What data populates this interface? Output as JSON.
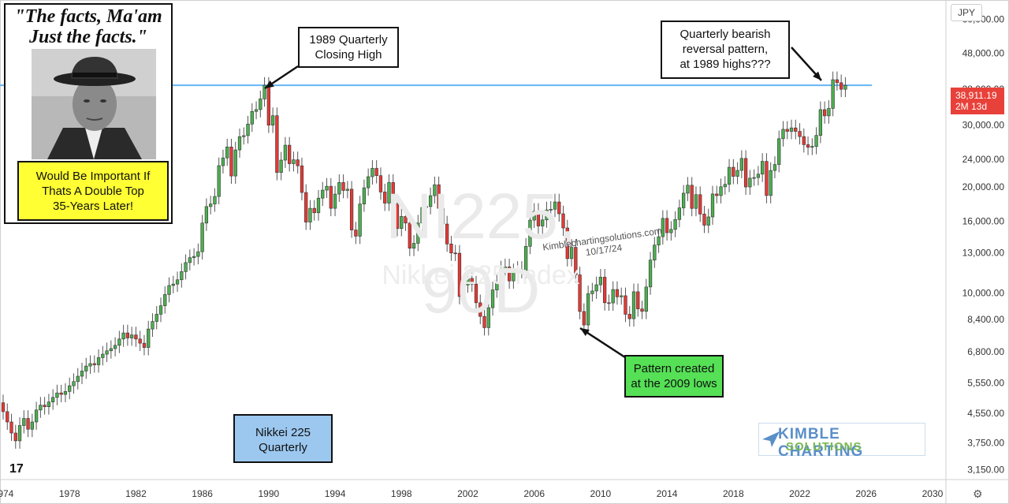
{
  "chart_data": {
    "type": "candlestick",
    "title": "Nikkei 225 Quarterly",
    "currency": "JPY",
    "y_scale": "log",
    "ylim": [
      2950,
      68000
    ],
    "xlim": [
      1974.0,
      2031.0
    ],
    "x_ticks": [
      "1974",
      "1978",
      "1982",
      "1986",
      "1990",
      "1994",
      "1998",
      "2002",
      "2006",
      "2010",
      "2014",
      "2018",
      "2022",
      "2026",
      "2030"
    ],
    "y_ticks": [
      "60,000.00",
      "48,000.00",
      "38,000.00",
      "30,000.00",
      "24,000.00",
      "20,000.00",
      "16,000.00",
      "13,000.00",
      "10,000.00",
      "8,400.00",
      "6,800.00",
      "5,550.00",
      "4,550.00",
      "3,750.00",
      "3,150.00"
    ],
    "resistance_line": 38915,
    "last_price": "38,911.19",
    "countdown": "2M 13d",
    "colors": {
      "up": "#4caf50",
      "down": "#e53935",
      "line": "#64b5f6",
      "tag": "#e8413a"
    },
    "quarterly_close": [
      [
        1974.0,
        4600
      ],
      [
        1974.25,
        4300
      ],
      [
        1974.5,
        4000
      ],
      [
        1974.75,
        3800
      ],
      [
        1975.0,
        4200
      ],
      [
        1975.25,
        4400
      ],
      [
        1975.5,
        4100
      ],
      [
        1975.75,
        4300
      ],
      [
        1976.0,
        4650
      ],
      [
        1976.25,
        4800
      ],
      [
        1976.5,
        4750
      ],
      [
        1976.75,
        4900
      ],
      [
        1977.0,
        5050
      ],
      [
        1977.25,
        5200
      ],
      [
        1977.5,
        5150
      ],
      [
        1977.75,
        5250
      ],
      [
        1978.0,
        5450
      ],
      [
        1978.25,
        5600
      ],
      [
        1978.5,
        5800
      ],
      [
        1978.75,
        6000
      ],
      [
        1979.0,
        6200
      ],
      [
        1979.25,
        6300
      ],
      [
        1979.5,
        6250
      ],
      [
        1979.75,
        6550
      ],
      [
        1980.0,
        6700
      ],
      [
        1980.25,
        6850
      ],
      [
        1980.5,
        6950
      ],
      [
        1980.75,
        7100
      ],
      [
        1981.0,
        7400
      ],
      [
        1981.25,
        7700
      ],
      [
        1981.5,
        7450
      ],
      [
        1981.75,
        7600
      ],
      [
        1982.0,
        7400
      ],
      [
        1982.25,
        7200
      ],
      [
        1982.5,
        7000
      ],
      [
        1982.75,
        7900
      ],
      [
        1983.0,
        8300
      ],
      [
        1983.25,
        8700
      ],
      [
        1983.5,
        9200
      ],
      [
        1983.75,
        9900
      ],
      [
        1984.0,
        10500
      ],
      [
        1984.25,
        10600
      ],
      [
        1984.5,
        10900
      ],
      [
        1984.75,
        11500
      ],
      [
        1985.0,
        12200
      ],
      [
        1985.25,
        12600
      ],
      [
        1985.5,
        12700
      ],
      [
        1985.75,
        13100
      ],
      [
        1986.0,
        15800
      ],
      [
        1986.25,
        17600
      ],
      [
        1986.5,
        17900
      ],
      [
        1986.75,
        18800
      ],
      [
        1987.0,
        23000
      ],
      [
        1987.25,
        24200
      ],
      [
        1987.5,
        26000
      ],
      [
        1987.75,
        21500
      ],
      [
        1988.0,
        25500
      ],
      [
        1988.25,
        27800
      ],
      [
        1988.5,
        28000
      ],
      [
        1988.75,
        30200
      ],
      [
        1989.0,
        32800
      ],
      [
        1989.25,
        33200
      ],
      [
        1989.5,
        35600
      ],
      [
        1989.75,
        38915
      ],
      [
        1990.0,
        29980
      ],
      [
        1990.25,
        31900
      ],
      [
        1990.5,
        22000
      ],
      [
        1990.75,
        23850
      ],
      [
        1991.0,
        26300
      ],
      [
        1991.25,
        23300
      ],
      [
        1991.5,
        23900
      ],
      [
        1991.75,
        22980
      ],
      [
        1992.0,
        19300
      ],
      [
        1992.25,
        15900
      ],
      [
        1992.5,
        17400
      ],
      [
        1992.75,
        16900
      ],
      [
        1993.0,
        18600
      ],
      [
        1993.25,
        19600
      ],
      [
        1993.5,
        20100
      ],
      [
        1993.75,
        17400
      ],
      [
        1994.0,
        19100
      ],
      [
        1994.25,
        20600
      ],
      [
        1994.5,
        19560
      ],
      [
        1994.75,
        19720
      ],
      [
        1995.0,
        15100
      ],
      [
        1995.25,
        14500
      ],
      [
        1995.5,
        17900
      ],
      [
        1995.75,
        19900
      ],
      [
        1996.0,
        21400
      ],
      [
        1996.25,
        22600
      ],
      [
        1996.5,
        21550
      ],
      [
        1996.75,
        19360
      ],
      [
        1997.0,
        18000
      ],
      [
        1997.25,
        20600
      ],
      [
        1997.5,
        17900
      ],
      [
        1997.75,
        15250
      ],
      [
        1998.0,
        16500
      ],
      [
        1998.25,
        15800
      ],
      [
        1998.5,
        13400
      ],
      [
        1998.75,
        13840
      ],
      [
        1999.0,
        15800
      ],
      [
        1999.25,
        17500
      ],
      [
        1999.5,
        17600
      ],
      [
        1999.75,
        18900
      ],
      [
        2000.0,
        20300
      ],
      [
        2000.25,
        17400
      ],
      [
        2000.5,
        15700
      ],
      [
        2000.75,
        13780
      ],
      [
        2001.0,
        12990
      ],
      [
        2001.25,
        12970
      ],
      [
        2001.5,
        9770
      ],
      [
        2001.75,
        10540
      ],
      [
        2002.0,
        11000
      ],
      [
        2002.25,
        10600
      ],
      [
        2002.5,
        9380
      ],
      [
        2002.75,
        8580
      ],
      [
        2003.0,
        7970
      ],
      [
        2003.25,
        9080
      ],
      [
        2003.5,
        10200
      ],
      [
        2003.75,
        10670
      ],
      [
        2004.0,
        11700
      ],
      [
        2004.25,
        11860
      ],
      [
        2004.5,
        10820
      ],
      [
        2004.75,
        11490
      ],
      [
        2005.0,
        11670
      ],
      [
        2005.25,
        11580
      ],
      [
        2005.5,
        13570
      ],
      [
        2005.75,
        16110
      ],
      [
        2006.0,
        17060
      ],
      [
        2006.25,
        15500
      ],
      [
        2006.5,
        16130
      ],
      [
        2006.75,
        17220
      ],
      [
        2007.0,
        17290
      ],
      [
        2007.25,
        18140
      ],
      [
        2007.5,
        16790
      ],
      [
        2007.75,
        15300
      ],
      [
        2008.0,
        12520
      ],
      [
        2008.25,
        13480
      ],
      [
        2008.5,
        11260
      ],
      [
        2008.75,
        8860
      ],
      [
        2009.0,
        8110
      ],
      [
        2009.25,
        9950
      ],
      [
        2009.5,
        10130
      ],
      [
        2009.75,
        10550
      ],
      [
        2010.0,
        11090
      ],
      [
        2010.25,
        9380
      ],
      [
        2010.5,
        9370
      ],
      [
        2010.75,
        10230
      ],
      [
        2011.0,
        9750
      ],
      [
        2011.25,
        9820
      ],
      [
        2011.5,
        8700
      ],
      [
        2011.75,
        8450
      ],
      [
        2012.0,
        10080
      ],
      [
        2012.25,
        9010
      ],
      [
        2012.5,
        8870
      ],
      [
        2012.75,
        10400
      ],
      [
        2013.0,
        12400
      ],
      [
        2013.25,
        13680
      ],
      [
        2013.5,
        14450
      ],
      [
        2013.75,
        16290
      ],
      [
        2014.0,
        14830
      ],
      [
        2014.25,
        15160
      ],
      [
        2014.5,
        16170
      ],
      [
        2014.75,
        17450
      ],
      [
        2015.0,
        19210
      ],
      [
        2015.25,
        20240
      ],
      [
        2015.5,
        17390
      ],
      [
        2015.75,
        19030
      ],
      [
        2016.0,
        16760
      ],
      [
        2016.25,
        15580
      ],
      [
        2016.5,
        16450
      ],
      [
        2016.75,
        19110
      ],
      [
        2017.0,
        18910
      ],
      [
        2017.25,
        20030
      ],
      [
        2017.5,
        20360
      ],
      [
        2017.75,
        22760
      ],
      [
        2018.0,
        21450
      ],
      [
        2018.25,
        22300
      ],
      [
        2018.5,
        24120
      ],
      [
        2018.75,
        20010
      ],
      [
        2019.0,
        21200
      ],
      [
        2019.25,
        21280
      ],
      [
        2019.5,
        21760
      ],
      [
        2019.75,
        23660
      ],
      [
        2020.0,
        18920
      ],
      [
        2020.25,
        22290
      ],
      [
        2020.5,
        23180
      ],
      [
        2020.75,
        27440
      ],
      [
        2021.0,
        29180
      ],
      [
        2021.25,
        28790
      ],
      [
        2021.5,
        29450
      ],
      [
        2021.75,
        28790
      ],
      [
        2022.0,
        27820
      ],
      [
        2022.25,
        26390
      ],
      [
        2022.5,
        25940
      ],
      [
        2022.75,
        26090
      ],
      [
        2023.0,
        28040
      ],
      [
        2023.25,
        33190
      ],
      [
        2023.5,
        31860
      ],
      [
        2023.75,
        33460
      ],
      [
        2024.0,
        40370
      ],
      [
        2024.25,
        39580
      ],
      [
        2024.5,
        37920
      ],
      [
        2024.75,
        38911
      ]
    ]
  },
  "quote": {
    "line1": "\"The facts, Ma'am",
    "line2": "Just the facts.\""
  },
  "yellow_note": {
    "line1": "Would Be Important If",
    "line2": "Thats A Double Top",
    "line3": "35-Years Later!"
  },
  "callouts": {
    "high": {
      "line1": "1989 Quarterly",
      "line2": "Closing High"
    },
    "reversal": {
      "line1": "Quarterly bearish",
      "line2": "reversal pattern,",
      "line3": "at 1989 highs???"
    },
    "pattern": {
      "line1": "Pattern created",
      "line2": "at the 2009 lows"
    },
    "index": {
      "line1": "Nikkei 225",
      "line2": "Quarterly"
    }
  },
  "watermark": {
    "symbol": "NI225, 90D",
    "name": "Nikkei 225 Index"
  },
  "signature": {
    "line1": "Kimblechartingsolutions.com",
    "line2": "10/17/24"
  },
  "logo": {
    "line1": "KIMBLE CHARTING",
    "line2": "SOLUTIONS"
  },
  "currency_button": "JPY",
  "tv_logo": "17",
  "settings_icon": "gear-icon"
}
